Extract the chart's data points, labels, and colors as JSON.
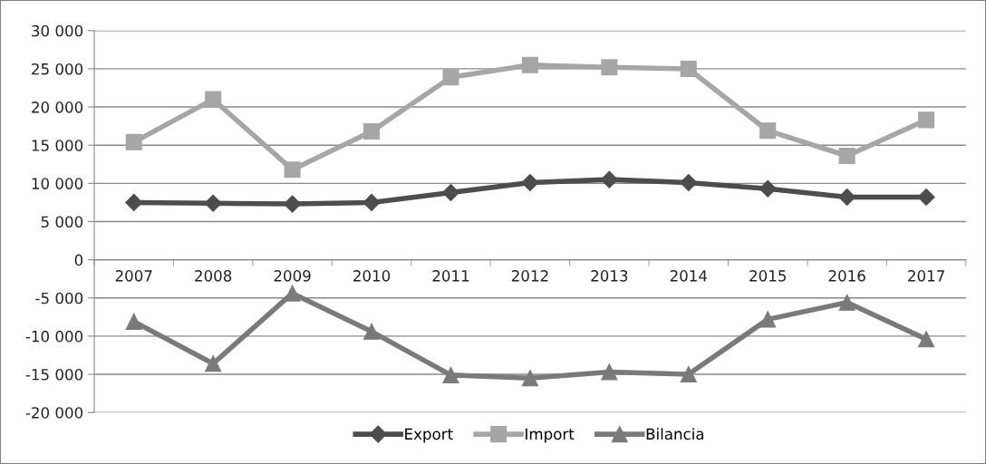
{
  "chart_data": {
    "type": "line",
    "categories": [
      "2007",
      "2008",
      "2009",
      "2010",
      "2011",
      "2012",
      "2013",
      "2014",
      "2015",
      "2016",
      "2017"
    ],
    "series": [
      {
        "name": "Export",
        "color": "#4d4d4d",
        "marker": "diamond",
        "values": [
          7500,
          7400,
          7300,
          7500,
          8800,
          10100,
          10500,
          10100,
          9300,
          8200,
          8200
        ]
      },
      {
        "name": "Import",
        "color": "#a6a6a6",
        "marker": "square",
        "values": [
          15400,
          21000,
          11800,
          16800,
          23900,
          25500,
          25200,
          25000,
          16900,
          13600,
          18300
        ]
      },
      {
        "name": "Bilancia",
        "color": "#7a7a7a",
        "marker": "triangle",
        "values": [
          -8100,
          -13600,
          -4400,
          -9400,
          -15100,
          -15500,
          -14700,
          -15000,
          -7800,
          -5600,
          -10400
        ]
      }
    ],
    "ylim": [
      -20000,
      30000
    ],
    "yticks": [
      {
        "value": -20000,
        "label": "-20 000"
      },
      {
        "value": -15000,
        "label": "-15 000"
      },
      {
        "value": -10000,
        "label": "-10 000"
      },
      {
        "value": -5000,
        "label": "-5 000"
      },
      0,
      {
        "value": 5000,
        "label": "5 000"
      },
      {
        "value": 10000,
        "label": "10 000"
      },
      {
        "value": 15000,
        "label": "15 000"
      },
      {
        "value": 20000,
        "label": "20 000"
      },
      {
        "value": 25000,
        "label": "25 000"
      },
      {
        "value": 30000,
        "label": "30 000"
      }
    ],
    "grid": "y",
    "legend": "bottom",
    "line_style": "solid"
  }
}
